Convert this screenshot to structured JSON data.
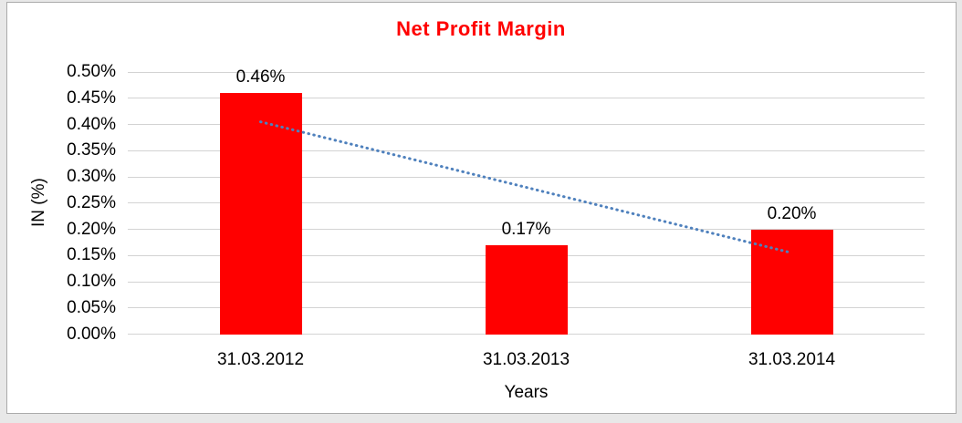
{
  "chart_data": {
    "type": "bar",
    "title": "Net Profit Margin",
    "title_color": "#ff0000",
    "xlabel": "Years",
    "ylabel": "IN (%)",
    "categories": [
      "31.03.2012",
      "31.03.2013",
      "31.03.2014"
    ],
    "values": [
      0.46,
      0.17,
      0.2
    ],
    "data_labels": [
      "0.46%",
      "0.17%",
      "0.20%"
    ],
    "ytick_labels": [
      "0.00%",
      "0.05%",
      "0.10%",
      "0.15%",
      "0.20%",
      "0.25%",
      "0.30%",
      "0.35%",
      "0.40%",
      "0.45%",
      "0.50%"
    ],
    "ylim": [
      0,
      0.5
    ],
    "ytick_step": 0.05,
    "grid": true,
    "legend": "none",
    "bar_color": "#ff0000",
    "gridline_color": "#d3d3d3",
    "trendline": {
      "type": "linear",
      "style": "dotted",
      "color": "#4f81bd",
      "start_value": 0.405,
      "end_value": 0.155
    }
  }
}
